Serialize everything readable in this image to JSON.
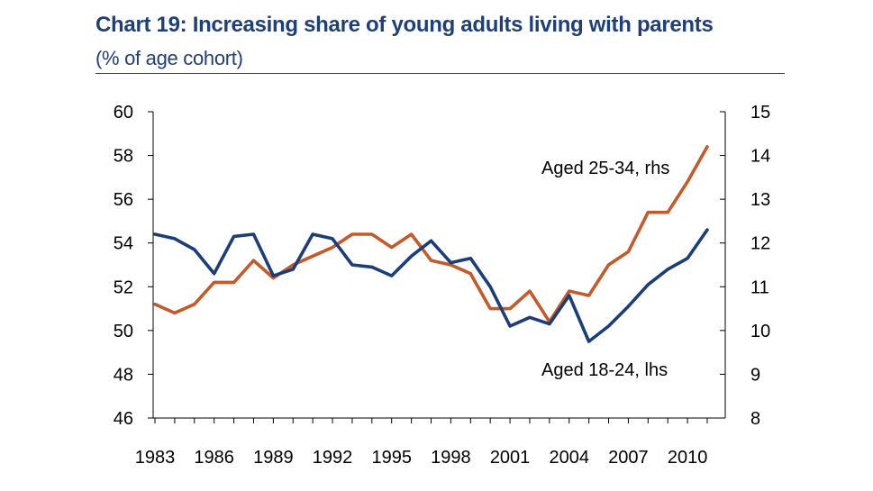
{
  "colors": {
    "title": "#1f3f7a",
    "series_lhs": "#1b3e7a",
    "series_rhs": "#c45a2a",
    "axis": "#000000"
  },
  "chart_data": {
    "type": "line",
    "title": "Chart 19: Increasing share of young adults living with parents",
    "subtitle": "(% of age cohort)",
    "x": [
      1983,
      1984,
      1985,
      1986,
      1987,
      1988,
      1989,
      1990,
      1991,
      1992,
      1993,
      1994,
      1995,
      1996,
      1997,
      1998,
      1999,
      2000,
      2001,
      2002,
      2003,
      2004,
      2005,
      2006,
      2007,
      2008,
      2009,
      2010,
      2011
    ],
    "x_tick_labels": [
      "1983",
      "1986",
      "1989",
      "1992",
      "1995",
      "1998",
      "2001",
      "2004",
      "2007",
      "2010"
    ],
    "ylim_left": [
      46,
      60
    ],
    "y_left_ticks": [
      "60",
      "58",
      "56",
      "54",
      "52",
      "50",
      "48",
      "46"
    ],
    "ylim_right": [
      8,
      15
    ],
    "y_right_ticks": [
      "15",
      "14",
      "13",
      "12",
      "11",
      "10",
      "9",
      "8"
    ],
    "grid": false,
    "series": [
      {
        "name": "Aged 18-24, lhs",
        "axis": "left",
        "values": [
          54.4,
          54.2,
          53.7,
          52.6,
          54.3,
          54.4,
          52.5,
          52.8,
          54.4,
          54.2,
          53.0,
          52.9,
          52.5,
          53.4,
          54.1,
          53.1,
          53.3,
          52.0,
          50.2,
          50.6,
          50.3,
          51.6,
          49.5,
          50.2,
          51.1,
          52.1,
          52.8,
          53.3,
          54.6
        ]
      },
      {
        "name": "Aged 25-34, rhs",
        "axis": "right",
        "values": [
          10.6,
          10.4,
          10.6,
          11.1,
          11.1,
          11.6,
          11.2,
          11.5,
          11.7,
          11.9,
          12.2,
          12.2,
          11.9,
          12.2,
          11.6,
          11.5,
          11.3,
          10.5,
          10.5,
          10.9,
          10.2,
          10.9,
          10.8,
          11.5,
          11.8,
          12.7,
          12.7,
          13.4,
          14.2
        ]
      }
    ]
  }
}
